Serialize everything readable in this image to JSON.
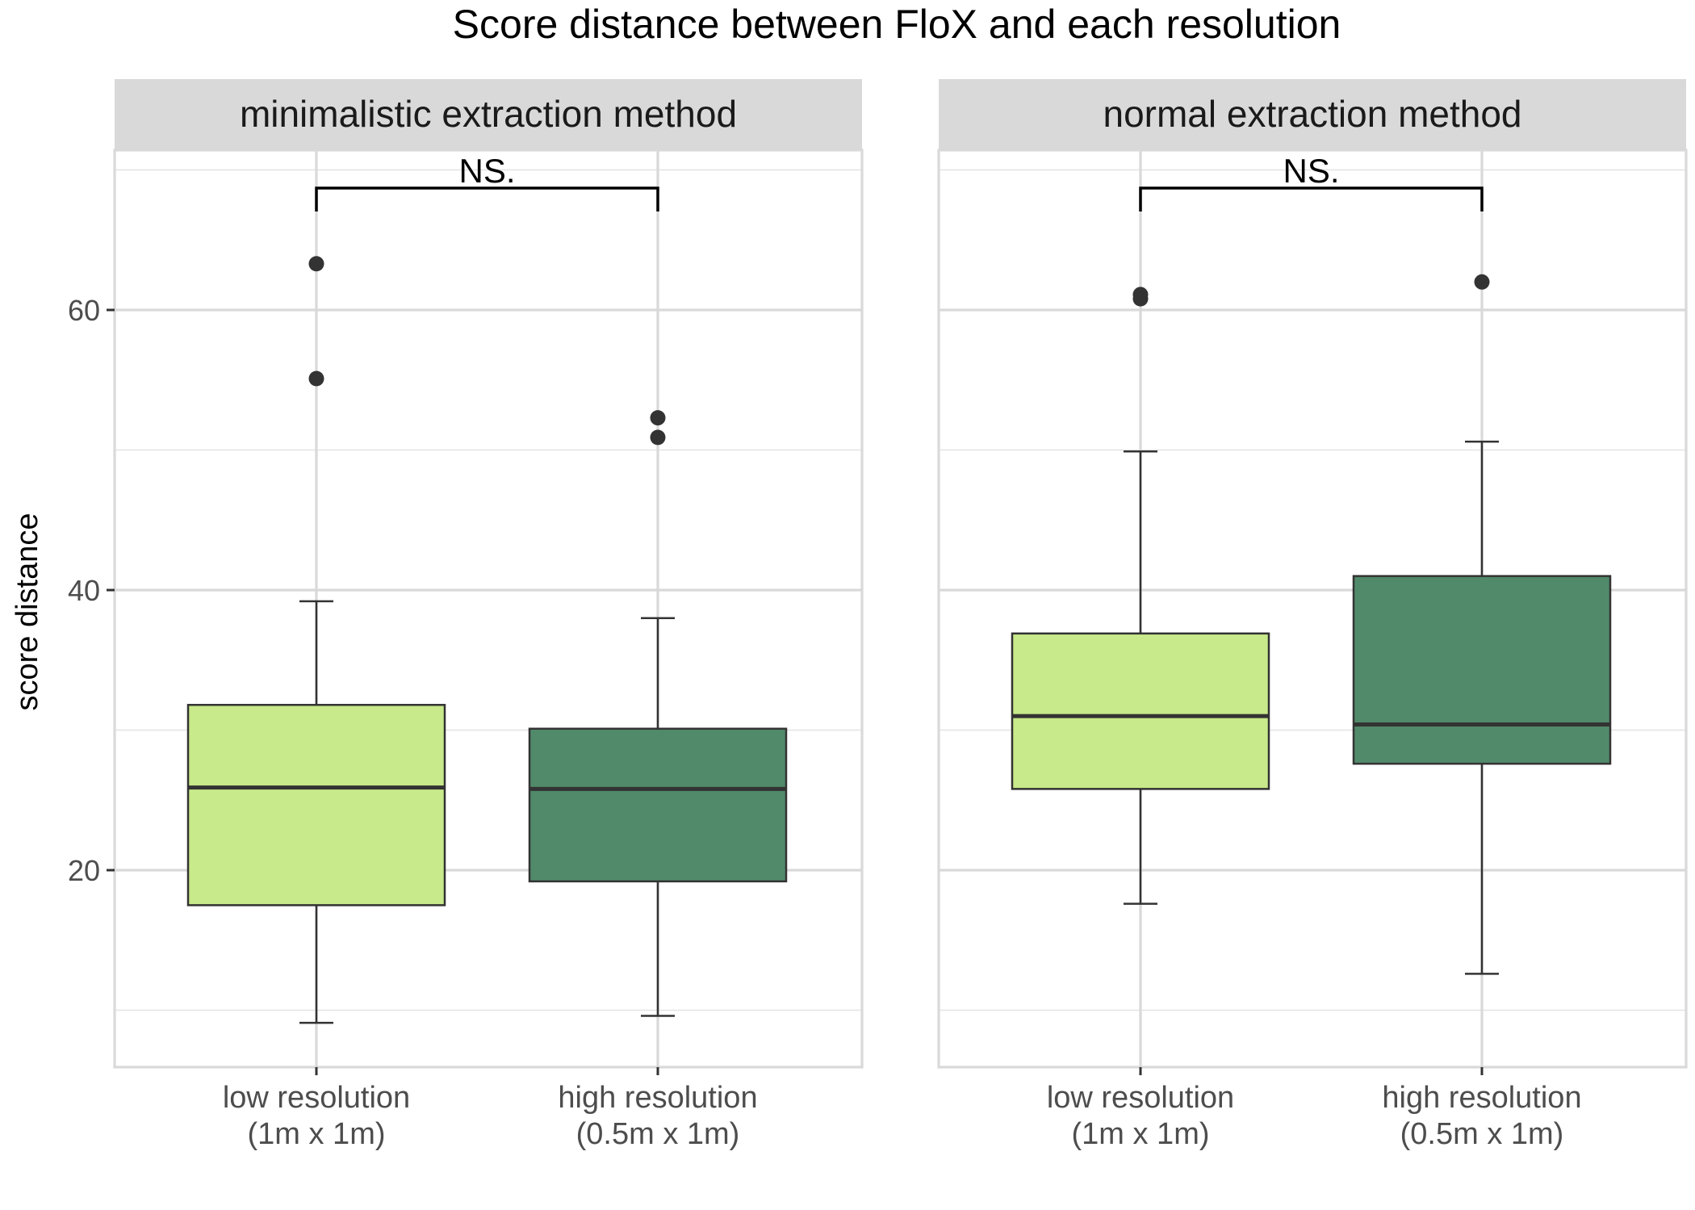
{
  "chart_data": {
    "type": "boxplot",
    "title": "Score distance between FloX and each resolution",
    "ylabel": "score distance",
    "xlabel": "",
    "ylim": [
      6,
      71
    ],
    "y_major_ticks": [
      20,
      40,
      60
    ],
    "y_minor_ticks": [
      10,
      30,
      50,
      70
    ],
    "y_tick_labels": [
      "20",
      "40",
      "60"
    ],
    "categories": [
      {
        "line1": "low resolution",
        "line2": "(1m x 1m)",
        "fill": "#c8ea8a"
      },
      {
        "line1": "high resolution",
        "line2": "(0.5m x 1m)",
        "fill": "#518a6a"
      }
    ],
    "panels": [
      {
        "title": "minimalistic extraction method",
        "significance": "NS.",
        "boxes": [
          {
            "category": 0,
            "whisker_low": 9.1,
            "q1": 17.5,
            "median": 25.9,
            "q3": 31.8,
            "whisker_high": 39.2,
            "outliers": [
              63.3,
              55.1
            ]
          },
          {
            "category": 1,
            "whisker_low": 9.6,
            "q1": 19.2,
            "median": 25.8,
            "q3": 30.1,
            "whisker_high": 38.0,
            "outliers": [
              52.3,
              50.9
            ]
          }
        ]
      },
      {
        "title": "normal extraction method",
        "significance": "NS.",
        "boxes": [
          {
            "category": 0,
            "whisker_low": 17.6,
            "q1": 25.8,
            "median": 31.0,
            "q3": 36.9,
            "whisker_high": 49.9,
            "outliers": [
              61.1,
              60.8
            ]
          },
          {
            "category": 1,
            "whisker_low": 12.6,
            "q1": 27.6,
            "median": 30.4,
            "q3": 41.0,
            "whisker_high": 50.6,
            "outliers": [
              62.0
            ]
          }
        ]
      }
    ]
  }
}
